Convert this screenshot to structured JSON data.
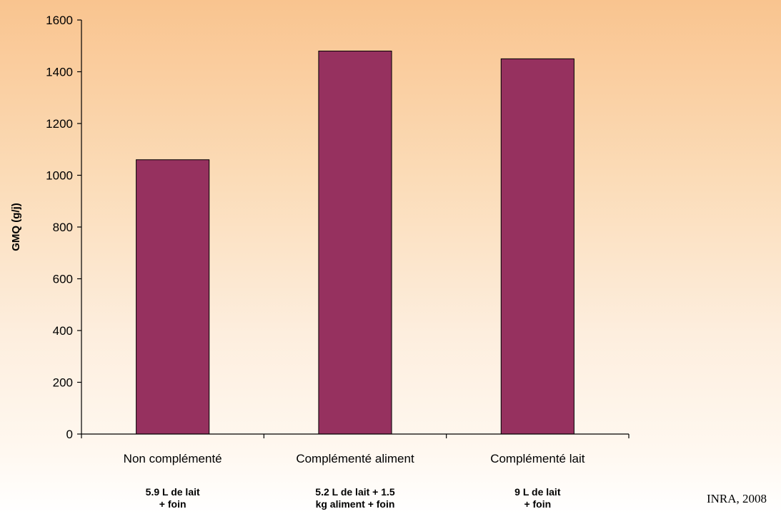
{
  "chart_data": {
    "type": "bar",
    "title": "",
    "xlabel": "",
    "ylabel": "GMQ (g/j)",
    "ylim": [
      0,
      1600
    ],
    "yticks": [
      0,
      200,
      400,
      600,
      800,
      1000,
      1200,
      1400,
      1600
    ],
    "categories": [
      "Non complémenté",
      "Complémenté aliment",
      "Complémenté lait"
    ],
    "sublabels": [
      [
        "5.9 L de lait",
        "+ foin"
      ],
      [
        "5.2 L de lait + 1.5",
        "kg aliment + foin"
      ],
      [
        "9 L de lait",
        "+ foin"
      ]
    ],
    "values": [
      1060,
      1480,
      1450
    ],
    "bar_color": "#96315f",
    "grid": false,
    "legend": "none",
    "source": "INRA, 2008"
  },
  "colors": {
    "background_top": "#f9c48f",
    "background_bottom": "#ffffff",
    "bar": "#96315f",
    "axis": "#000000"
  }
}
